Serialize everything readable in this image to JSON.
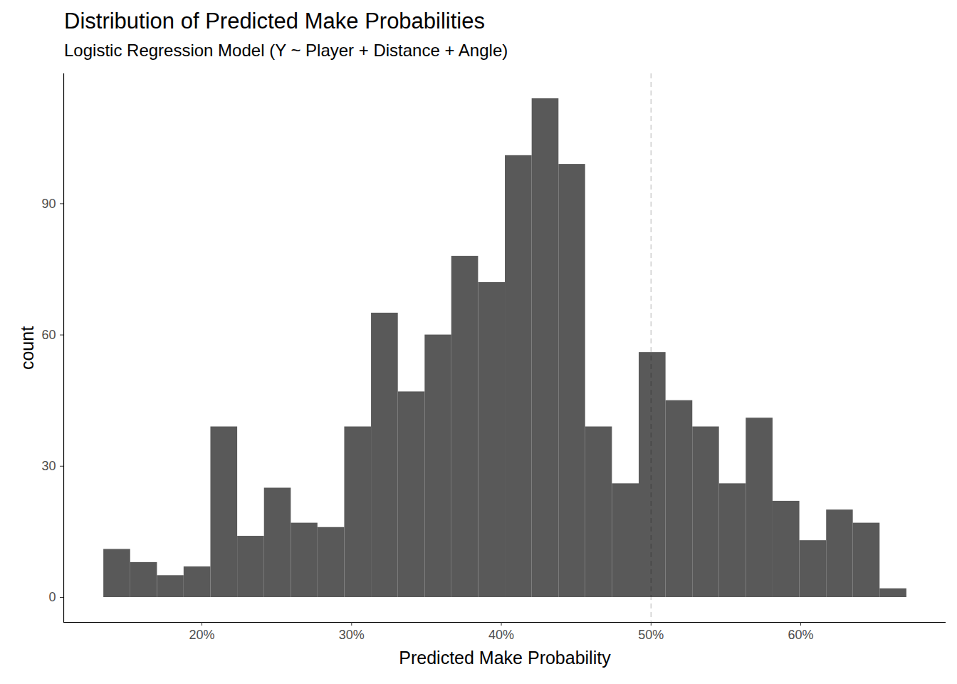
{
  "chart_data": {
    "type": "histogram",
    "title": "Distribution of Predicted Make Probabilities",
    "subtitle": "Logistic Regression Model (Y ~ Player + Distance + Angle)",
    "x_label": "Predicted Make Probability",
    "y_label": "count",
    "bins": [
      13.44,
      15.23,
      17.02,
      18.8,
      20.59,
      22.38,
      24.17,
      25.96,
      27.74,
      29.53,
      31.32,
      33.11,
      34.9,
      36.68,
      38.47,
      40.26,
      42.05,
      43.84,
      45.62,
      47.41,
      49.2,
      50.99,
      52.78,
      54.56,
      56.35,
      58.14,
      59.93,
      61.72,
      63.5,
      65.29,
      67.08
    ],
    "values": [
      11,
      8,
      5,
      7,
      39,
      14,
      25,
      17,
      16,
      39,
      65,
      47,
      60,
      78,
      72,
      101,
      114,
      99,
      39,
      26,
      56,
      45,
      39,
      26,
      41,
      22,
      13,
      20,
      17,
      2
    ],
    "color": "#595959",
    "reference_line": 50,
    "xlim": [
      10.77,
      69.7
    ],
    "xticks": [
      {
        "value": 20,
        "label": "20%"
      },
      {
        "value": 30,
        "label": "30%"
      },
      {
        "value": 40,
        "label": "40%"
      },
      {
        "value": 50,
        "label": "50%"
      },
      {
        "value": 60,
        "label": "60%"
      }
    ],
    "ylim": [
      -5.7,
      119.7
    ],
    "yticks": [
      0,
      30,
      60,
      90
    ],
    "grid": false
  }
}
